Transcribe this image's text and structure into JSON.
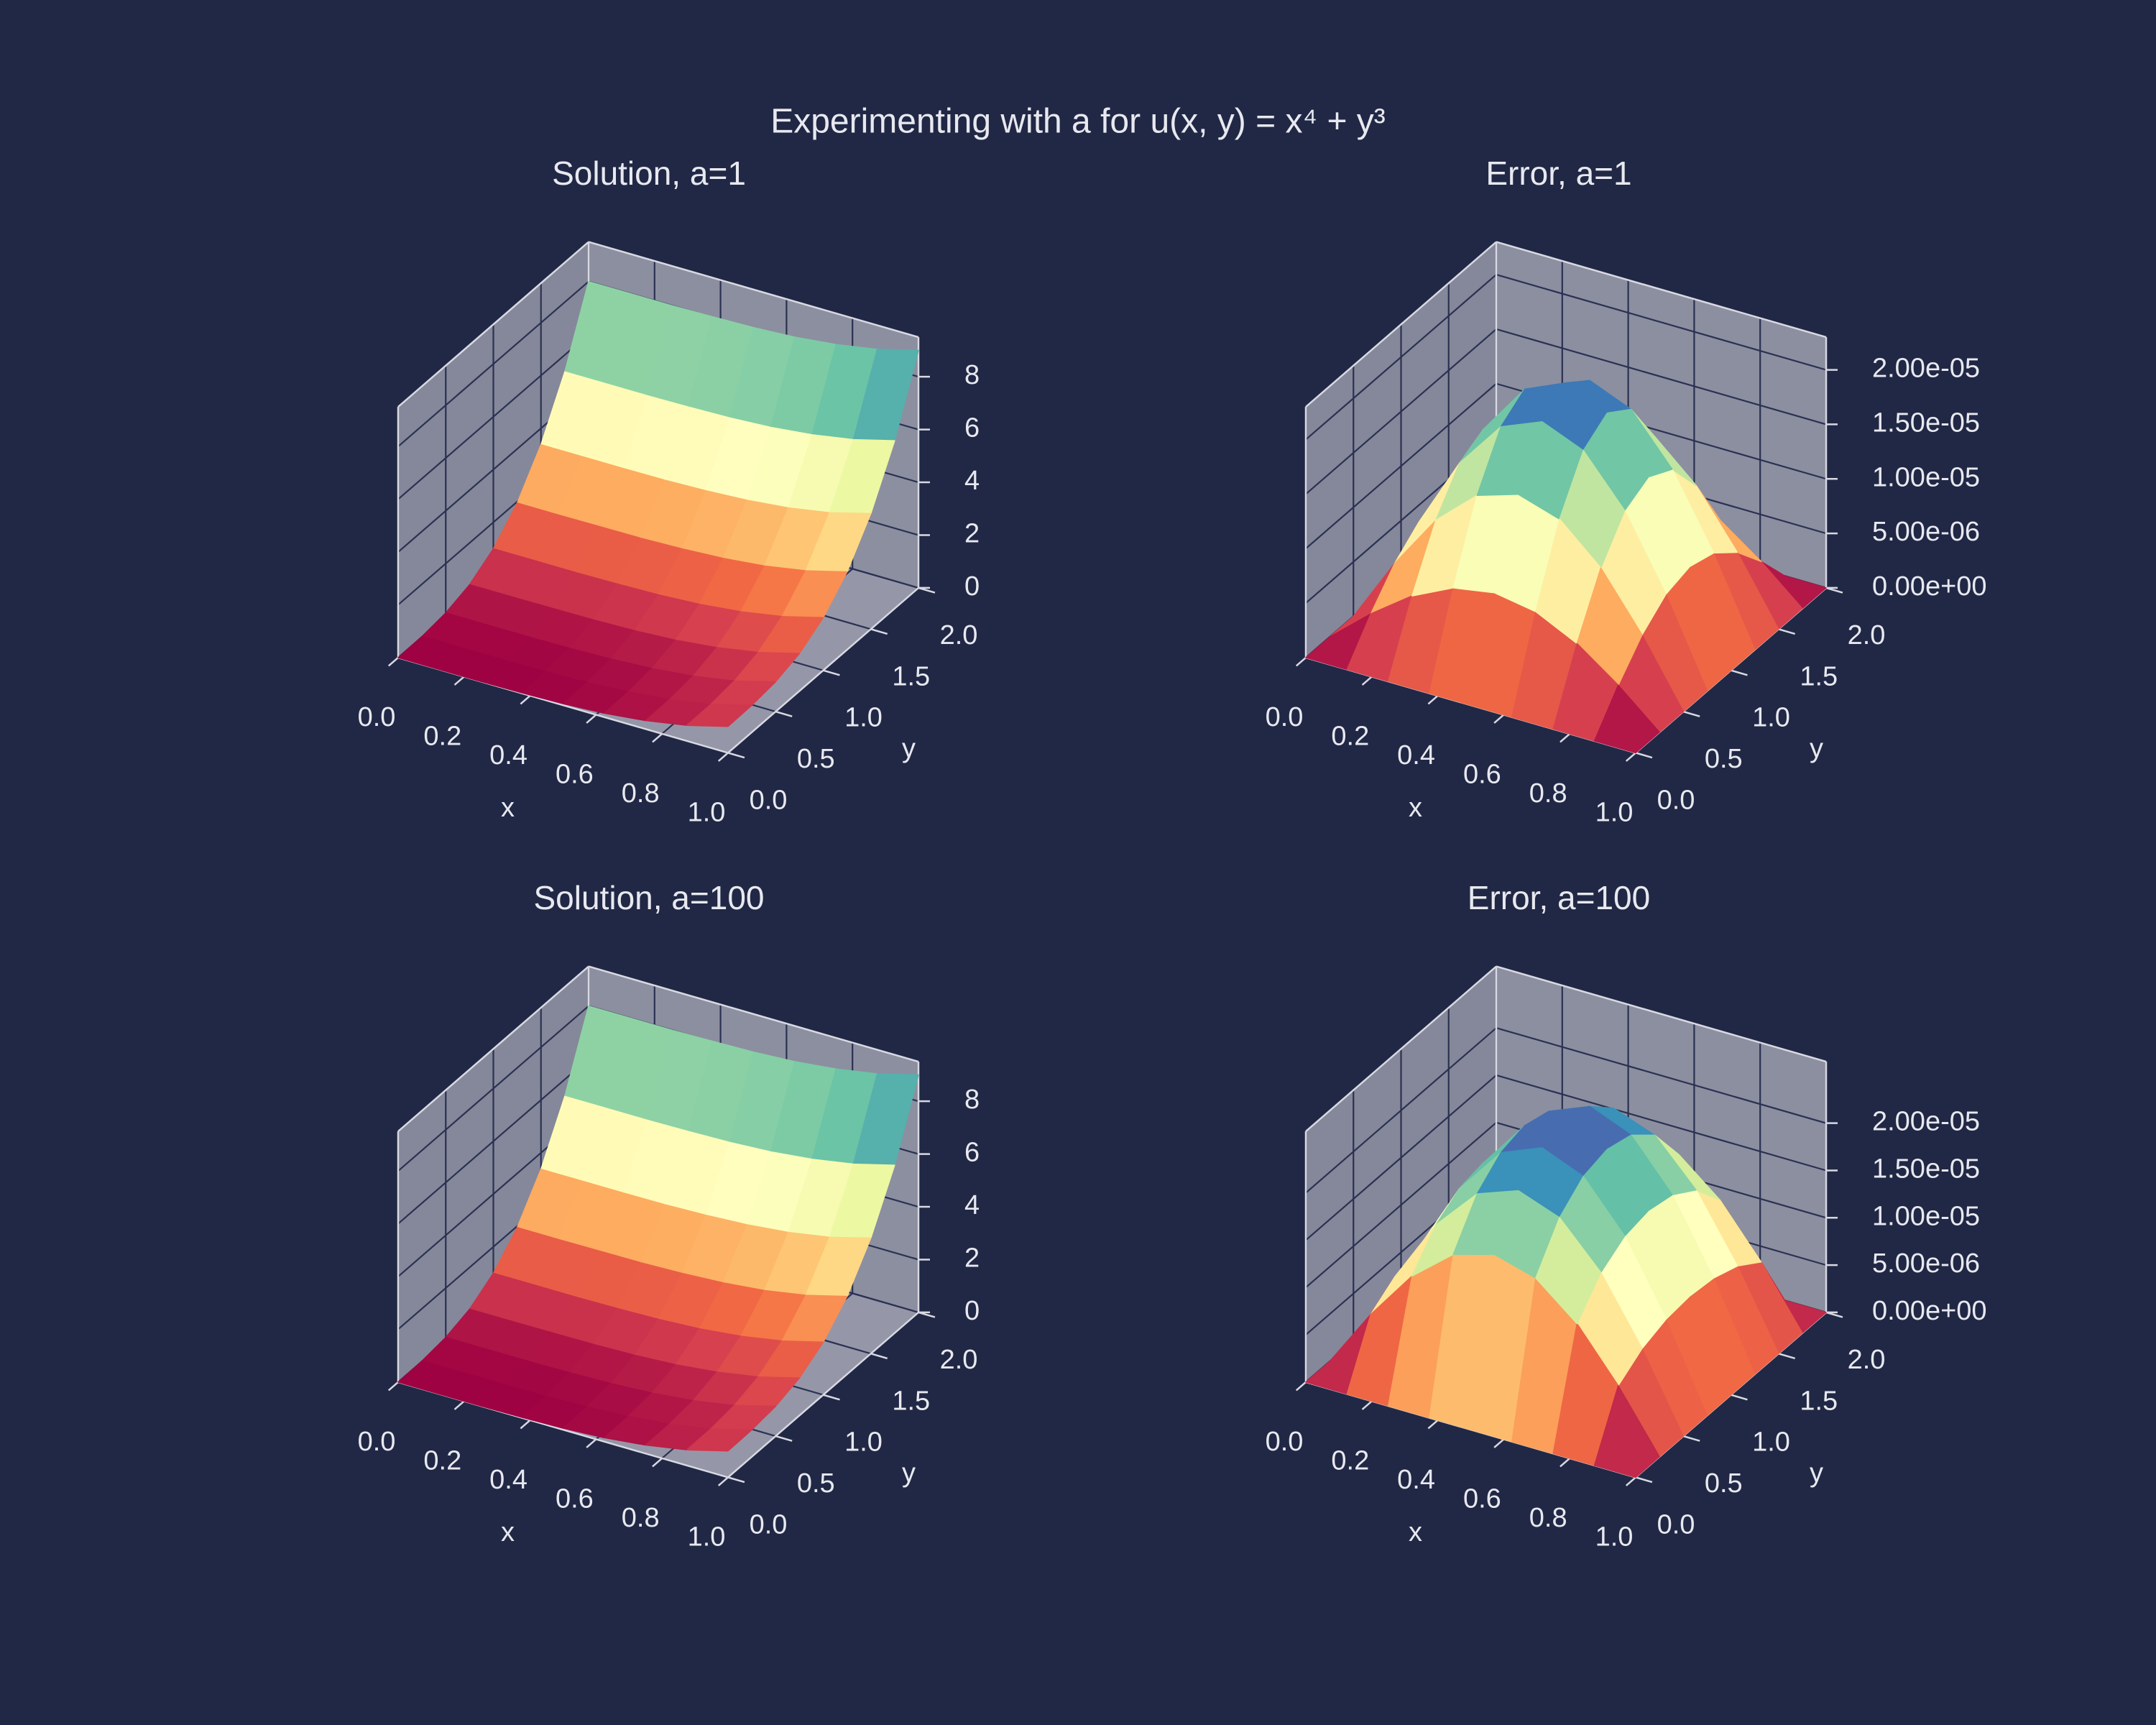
{
  "title": "Experimenting with a for u(x, y) = x⁴ + y³",
  "colormap": [
    "#9e0142",
    "#d53e4f",
    "#f46d43",
    "#fdae61",
    "#fee08b",
    "#ffffbf",
    "#e6f598",
    "#abdda4",
    "#66c2a5",
    "#3288bd",
    "#5e4fa2"
  ],
  "chart_data": [
    {
      "type": "surface",
      "title": "Solution, a=1",
      "xlabel": "x",
      "ylabel": "y",
      "elev": 30,
      "azim": -60,
      "x": [
        0,
        0.125,
        0.25,
        0.375,
        0.5,
        0.625,
        0.75,
        0.875,
        1
      ],
      "y": [
        0,
        0.25,
        0.5,
        0.75,
        1,
        1.25,
        1.5,
        1.75,
        2
      ],
      "z": [
        [
          0,
          0,
          0,
          0.02,
          0.06,
          0.15,
          0.32,
          0.59,
          1
        ],
        [
          0.02,
          0.02,
          0.02,
          0.04,
          0.08,
          0.17,
          0.33,
          0.6,
          1.02
        ],
        [
          0.13,
          0.13,
          0.13,
          0.15,
          0.19,
          0.28,
          0.44,
          0.71,
          1.13
        ],
        [
          0.42,
          0.42,
          0.43,
          0.44,
          0.48,
          0.57,
          0.74,
          1.01,
          1.42
        ],
        [
          1,
          1,
          1,
          1.02,
          1.06,
          1.15,
          1.32,
          1.59,
          2
        ],
        [
          1.95,
          1.95,
          1.96,
          1.97,
          2.02,
          2.11,
          2.27,
          2.54,
          2.95
        ],
        [
          3.38,
          3.38,
          3.38,
          3.39,
          3.44,
          3.53,
          3.69,
          3.96,
          4.38
        ],
        [
          5.36,
          5.36,
          5.36,
          5.38,
          5.42,
          5.51,
          5.68,
          5.95,
          6.36
        ],
        [
          8,
          8,
          8,
          8.02,
          8.06,
          8.15,
          8.32,
          8.59,
          9
        ]
      ],
      "xlim": [
        0,
        1
      ],
      "ylim": [
        0,
        2
      ],
      "zlim": [
        0,
        9.5
      ],
      "xticks": [
        {
          "value": 0,
          "label": "0.0"
        },
        0.2,
        0.4,
        0.6,
        0.8,
        {
          "value": 1,
          "label": "1.0"
        }
      ],
      "yticks": [
        {
          "value": 0,
          "label": "0.0"
        },
        0.5,
        {
          "value": 1,
          "label": "1.0"
        },
        1.5,
        {
          "value": 2,
          "label": "2.0"
        }
      ],
      "zticks": [
        0,
        2,
        4,
        6,
        8
      ]
    },
    {
      "type": "surface",
      "title": "Error, a=1",
      "xlabel": "x",
      "ylabel": "y",
      "elev": 30,
      "azim": -60,
      "x": [
        0,
        0.125,
        0.25,
        0.375,
        0.5,
        0.625,
        0.75,
        0.875,
        1
      ],
      "y": [
        0,
        0.25,
        0.5,
        0.75,
        1,
        1.25,
        1.5,
        1.75,
        2
      ],
      "z": [
        [
          0,
          0,
          0,
          0,
          0,
          0,
          0,
          0,
          0
        ],
        [
          0,
          3.22e-06,
          5.95e-06,
          7.78e-06,
          8.42e-06,
          7.78e-06,
          5.95e-06,
          3.22e-06,
          0
        ],
        [
          0,
          5.95e-06,
          1.1e-05,
          1.437e-05,
          1.556e-05,
          1.437e-05,
          1.1e-05,
          5.95e-06,
          0
        ],
        [
          0,
          7.78e-06,
          1.437e-05,
          1.878e-05,
          2.033e-05,
          1.878e-05,
          1.437e-05,
          7.78e-06,
          0
        ],
        [
          0,
          8.42e-06,
          1.556e-05,
          2.033e-05,
          2.2e-05,
          2.033e-05,
          1.556e-05,
          8.42e-06,
          0
        ],
        [
          0,
          7.78e-06,
          1.437e-05,
          1.878e-05,
          2.033e-05,
          1.878e-05,
          1.437e-05,
          7.78e-06,
          0
        ],
        [
          0,
          5.95e-06,
          1.1e-05,
          1.437e-05,
          1.556e-05,
          1.437e-05,
          1.1e-05,
          5.95e-06,
          0
        ],
        [
          0,
          3.22e-06,
          5.95e-06,
          7.78e-06,
          8.42e-06,
          7.78e-06,
          5.95e-06,
          3.22e-06,
          0
        ],
        [
          0,
          0,
          0,
          0,
          0,
          0,
          0,
          0,
          0
        ]
      ],
      "xlim": [
        0,
        1
      ],
      "ylim": [
        0,
        2
      ],
      "zlim": [
        0,
        2.3e-05
      ],
      "xticks": [
        {
          "value": 0,
          "label": "0.0"
        },
        0.2,
        0.4,
        0.6,
        0.8,
        {
          "value": 1,
          "label": "1.0"
        }
      ],
      "yticks": [
        {
          "value": 0,
          "label": "0.0"
        },
        0.5,
        {
          "value": 1,
          "label": "1.0"
        },
        1.5,
        {
          "value": 2,
          "label": "2.0"
        }
      ],
      "zticks": [
        {
          "value": 0,
          "label": "0.00e+00"
        },
        {
          "value": 5e-06,
          "label": "5.00e-06"
        },
        {
          "value": 1e-05,
          "label": "1.00e-05"
        },
        {
          "value": 1.5e-05,
          "label": "1.50e-05"
        },
        {
          "value": 2e-05,
          "label": "2.00e-05"
        }
      ]
    },
    {
      "type": "surface",
      "title": "Solution, a=100",
      "xlabel": "x",
      "ylabel": "y",
      "elev": 30,
      "azim": -60,
      "x": [
        0,
        0.125,
        0.25,
        0.375,
        0.5,
        0.625,
        0.75,
        0.875,
        1
      ],
      "y": [
        0,
        0.25,
        0.5,
        0.75,
        1,
        1.25,
        1.5,
        1.75,
        2
      ],
      "z": [
        [
          0,
          0,
          0,
          0.02,
          0.06,
          0.15,
          0.32,
          0.59,
          1
        ],
        [
          0.02,
          0.02,
          0.02,
          0.04,
          0.08,
          0.17,
          0.33,
          0.6,
          1.02
        ],
        [
          0.13,
          0.13,
          0.13,
          0.15,
          0.19,
          0.28,
          0.44,
          0.71,
          1.13
        ],
        [
          0.42,
          0.42,
          0.43,
          0.44,
          0.48,
          0.57,
          0.74,
          1.01,
          1.42
        ],
        [
          1,
          1,
          1,
          1.02,
          1.06,
          1.15,
          1.32,
          1.59,
          2
        ],
        [
          1.95,
          1.95,
          1.96,
          1.97,
          2.02,
          2.11,
          2.27,
          2.54,
          2.95
        ],
        [
          3.38,
          3.38,
          3.38,
          3.39,
          3.44,
          3.53,
          3.69,
          3.96,
          4.38
        ],
        [
          5.36,
          5.36,
          5.36,
          5.38,
          5.42,
          5.51,
          5.68,
          5.95,
          6.36
        ],
        [
          8,
          8,
          8,
          8.02,
          8.06,
          8.15,
          8.32,
          8.59,
          9
        ]
      ],
      "xlim": [
        0,
        1
      ],
      "ylim": [
        0,
        2
      ],
      "zlim": [
        0,
        9.5
      ],
      "xticks": [
        {
          "value": 0,
          "label": "0.0"
        },
        0.2,
        0.4,
        0.6,
        0.8,
        {
          "value": 1,
          "label": "1.0"
        }
      ],
      "yticks": [
        {
          "value": 0,
          "label": "0.0"
        },
        0.5,
        {
          "value": 1,
          "label": "1.0"
        },
        1.5,
        {
          "value": 2,
          "label": "2.0"
        }
      ],
      "zticks": [
        0,
        2,
        4,
        6,
        8
      ]
    },
    {
      "type": "surface",
      "title": "Error, a=100",
      "xlabel": "x",
      "ylabel": "y",
      "elev": 30,
      "azim": -60,
      "x": [
        0,
        0.125,
        0.25,
        0.375,
        0.5,
        0.625,
        0.75,
        0.875,
        1
      ],
      "y": [
        0,
        0.25,
        0.5,
        0.75,
        1,
        1.25,
        1.5,
        1.75,
        2
      ],
      "z": [
        [
          0,
          0,
          0,
          0,
          0,
          0,
          0,
          0,
          0
        ],
        [
          0,
          6.25e-06,
          1.155e-05,
          1.51e-05,
          1.634e-05,
          1.51e-05,
          1.155e-05,
          6.25e-06,
          0
        ],
        [
          0,
          8e-06,
          1.478e-05,
          1.931e-05,
          2.09e-05,
          1.931e-05,
          1.478e-05,
          8e-06,
          0
        ],
        [
          0,
          8.9e-06,
          1.645e-05,
          2.149e-05,
          2.326e-05,
          2.149e-05,
          1.645e-05,
          8.9e-06,
          0
        ],
        [
          0,
          9.18e-06,
          1.697e-05,
          2.217e-05,
          2.4e-05,
          2.217e-05,
          1.697e-05,
          9.18e-06,
          0
        ],
        [
          0,
          8.9e-06,
          1.645e-05,
          2.149e-05,
          2.326e-05,
          2.149e-05,
          1.645e-05,
          8.9e-06,
          0
        ],
        [
          0,
          8e-06,
          1.478e-05,
          1.931e-05,
          2.09e-05,
          1.931e-05,
          1.478e-05,
          8e-06,
          0
        ],
        [
          0,
          6.25e-06,
          1.155e-05,
          1.51e-05,
          1.634e-05,
          1.51e-05,
          1.155e-05,
          6.25e-06,
          0
        ],
        [
          0,
          0,
          0,
          0,
          0,
          0,
          0,
          0,
          0
        ]
      ],
      "xlim": [
        0,
        1
      ],
      "ylim": [
        0,
        2
      ],
      "zlim": [
        0,
        2.65e-05
      ],
      "xticks": [
        {
          "value": 0,
          "label": "0.0"
        },
        0.2,
        0.4,
        0.6,
        0.8,
        {
          "value": 1,
          "label": "1.0"
        }
      ],
      "yticks": [
        {
          "value": 0,
          "label": "0.0"
        },
        0.5,
        {
          "value": 1,
          "label": "1.0"
        },
        1.5,
        {
          "value": 2,
          "label": "2.0"
        }
      ],
      "zticks": [
        {
          "value": 0,
          "label": "0.00e+00"
        },
        {
          "value": 5e-06,
          "label": "5.00e-06"
        },
        {
          "value": 1e-05,
          "label": "1.00e-05"
        },
        {
          "value": 1.5e-05,
          "label": "1.50e-05"
        },
        {
          "value": 2e-05,
          "label": "2.00e-05"
        }
      ]
    }
  ]
}
